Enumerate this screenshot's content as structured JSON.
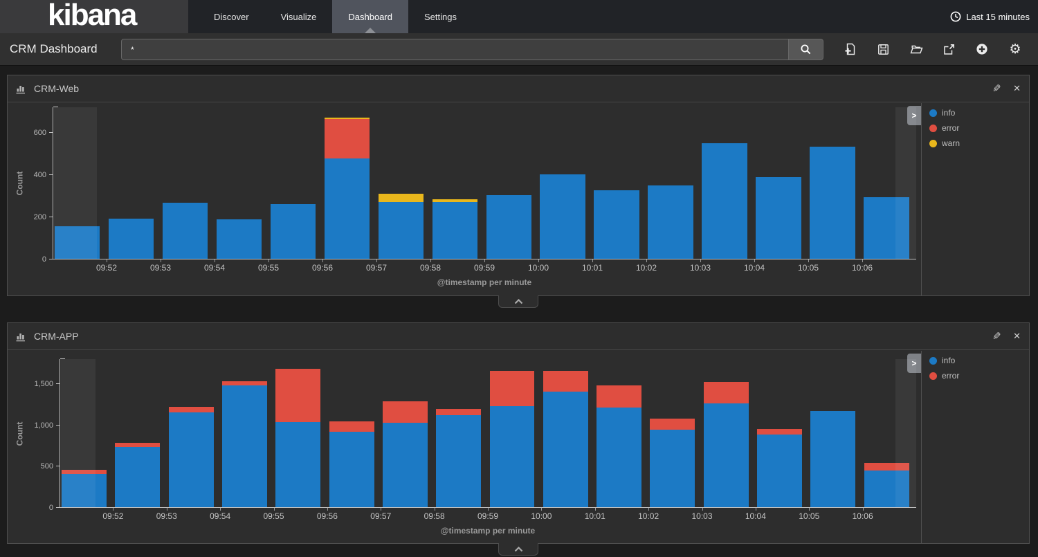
{
  "app": {
    "logo_text": "kibana",
    "logo_stripe_colors": [
      "#7db742",
      "#19a8b4",
      "#c9a227",
      "#0f7f86",
      "#e8478b"
    ]
  },
  "nav": {
    "items": [
      {
        "label": "Discover",
        "active": false
      },
      {
        "label": "Visualize",
        "active": false
      },
      {
        "label": "Dashboard",
        "active": true
      },
      {
        "label": "Settings",
        "active": false
      }
    ],
    "time_filter": {
      "icon": "clock-icon",
      "label": "Last 15 minutes"
    }
  },
  "toolbar": {
    "dashboard_title": "CRM Dashboard",
    "query": {
      "value": "*",
      "icon": "magnifier-icon"
    },
    "buttons": [
      {
        "name": "new-dashboard",
        "icon": "document-plus-icon"
      },
      {
        "name": "save-dashboard",
        "icon": "floppy-disk-icon"
      },
      {
        "name": "open-dashboard",
        "icon": "folder-open-icon"
      },
      {
        "name": "share-dashboard",
        "icon": "external-link-icon"
      },
      {
        "name": "add-visualization",
        "icon": "plus-circle-icon"
      },
      {
        "name": "dashboard-options",
        "icon": "gear-icon"
      }
    ]
  },
  "panels": [
    {
      "title": "CRM-Web",
      "type_icon": "bar-chart-icon",
      "actions": [
        "edit-pencil-icon",
        "remove-x-icon"
      ],
      "legend_toggle": ">"
    },
    {
      "title": "CRM-APP",
      "type_icon": "bar-chart-icon",
      "actions": [
        "edit-pencil-icon",
        "remove-x-icon"
      ],
      "legend_toggle": ">"
    }
  ],
  "chart_data": [
    {
      "type": "bar",
      "stacked": true,
      "title": "CRM-Web",
      "xlabel": "@timestamp per minute",
      "ylabel": "Count",
      "ylim": [
        0,
        720
      ],
      "yticks": [
        0,
        200,
        400,
        600
      ],
      "ytick_labels": [
        "0",
        "200",
        "400",
        "600"
      ],
      "grid": false,
      "legend_position": "right",
      "partial_buckets": {
        "first": true,
        "last": true
      },
      "categories": [
        "",
        "09:52",
        "09:53",
        "09:54",
        "09:55",
        "09:56",
        "09:57",
        "09:58",
        "09:59",
        "10:00",
        "10:01",
        "10:02",
        "10:03",
        "10:04",
        "10:05",
        "10:06"
      ],
      "series": [
        {
          "name": "info",
          "color": "#1c7ac5",
          "values": [
            155,
            190,
            265,
            185,
            260,
            475,
            270,
            268,
            300,
            400,
            325,
            348,
            545,
            385,
            530,
            290
          ]
        },
        {
          "name": "error",
          "color": "#e04e41",
          "values": [
            0,
            0,
            0,
            0,
            0,
            185,
            0,
            0,
            0,
            0,
            0,
            0,
            0,
            0,
            0,
            0
          ]
        },
        {
          "name": "warn",
          "color": "#e9b71c",
          "values": [
            0,
            0,
            0,
            0,
            0,
            8,
            38,
            14,
            0,
            0,
            0,
            0,
            0,
            0,
            0,
            0
          ]
        }
      ]
    },
    {
      "type": "bar",
      "stacked": true,
      "title": "CRM-APP",
      "xlabel": "@timestamp per minute",
      "ylabel": "Count",
      "ylim": [
        0,
        1800
      ],
      "yticks": [
        0,
        500,
        1000,
        1500
      ],
      "ytick_labels": [
        "0",
        "500",
        "1,000",
        "1,500"
      ],
      "grid": false,
      "legend_position": "right",
      "partial_buckets": {
        "first": true,
        "last": true
      },
      "categories": [
        "",
        "09:52",
        "09:53",
        "09:54",
        "09:55",
        "09:56",
        "09:57",
        "09:58",
        "09:59",
        "10:00",
        "10:01",
        "10:02",
        "10:03",
        "10:04",
        "10:05",
        "10:06"
      ],
      "series": [
        {
          "name": "info",
          "color": "#1c7ac5",
          "values": [
            400,
            725,
            1150,
            1470,
            1030,
            915,
            1025,
            1115,
            1220,
            1400,
            1205,
            935,
            1260,
            880,
            1165,
            440
          ]
        },
        {
          "name": "error",
          "color": "#e04e41",
          "values": [
            55,
            55,
            60,
            50,
            645,
            120,
            255,
            70,
            430,
            250,
            270,
            140,
            255,
            65,
            0,
            100
          ]
        }
      ]
    }
  ]
}
